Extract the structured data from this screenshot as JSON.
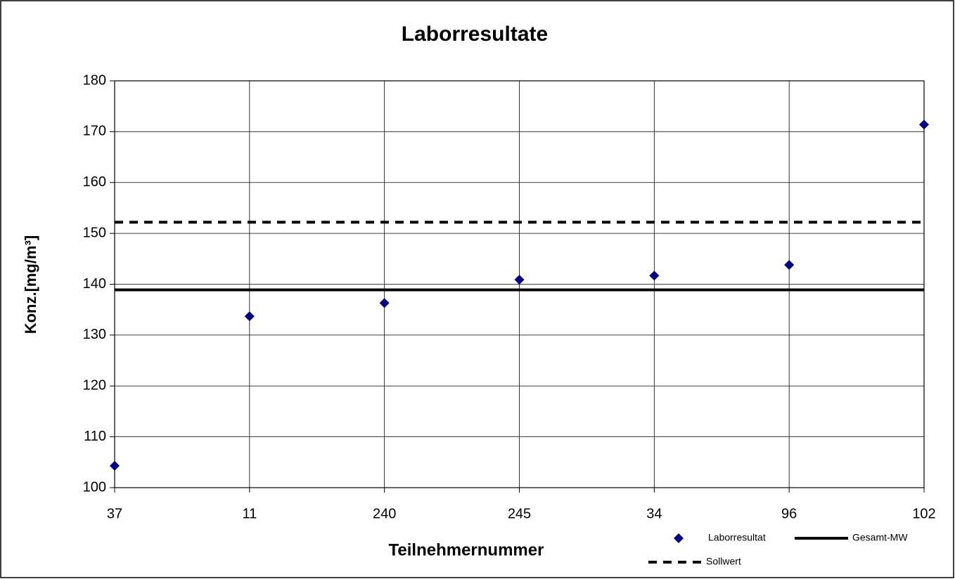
{
  "chart_data": {
    "type": "line",
    "title": "Laborresultate",
    "x_label": "Teilnehmernummer",
    "y_label": "Konz.[mg/m³]",
    "categories": [
      "37",
      "11",
      "240",
      "245",
      "34",
      "96",
      "102"
    ],
    "series": [
      {
        "name": "Laborresultat",
        "color": "#000080",
        "marker": "diamond",
        "line": "none",
        "values": [
          104.3,
          133.7,
          136.3,
          140.9,
          141.7,
          143.8,
          171.4
        ]
      },
      {
        "name": "Gesamt-MW",
        "color": "#000000",
        "marker": "none",
        "line": "solid",
        "values": [
          138.9,
          138.9,
          138.9,
          138.9,
          138.9,
          138.9,
          138.9
        ]
      },
      {
        "name": "Sollwert",
        "color": "#000000",
        "marker": "none",
        "line": "dashed",
        "values": [
          152.2,
          152.2,
          152.2,
          152.2,
          152.2,
          152.2,
          152.2
        ]
      }
    ],
    "ylim": [
      100,
      180
    ],
    "yticks": [
      100,
      110,
      120,
      130,
      140,
      150,
      160,
      170,
      180
    ],
    "grid": true
  }
}
